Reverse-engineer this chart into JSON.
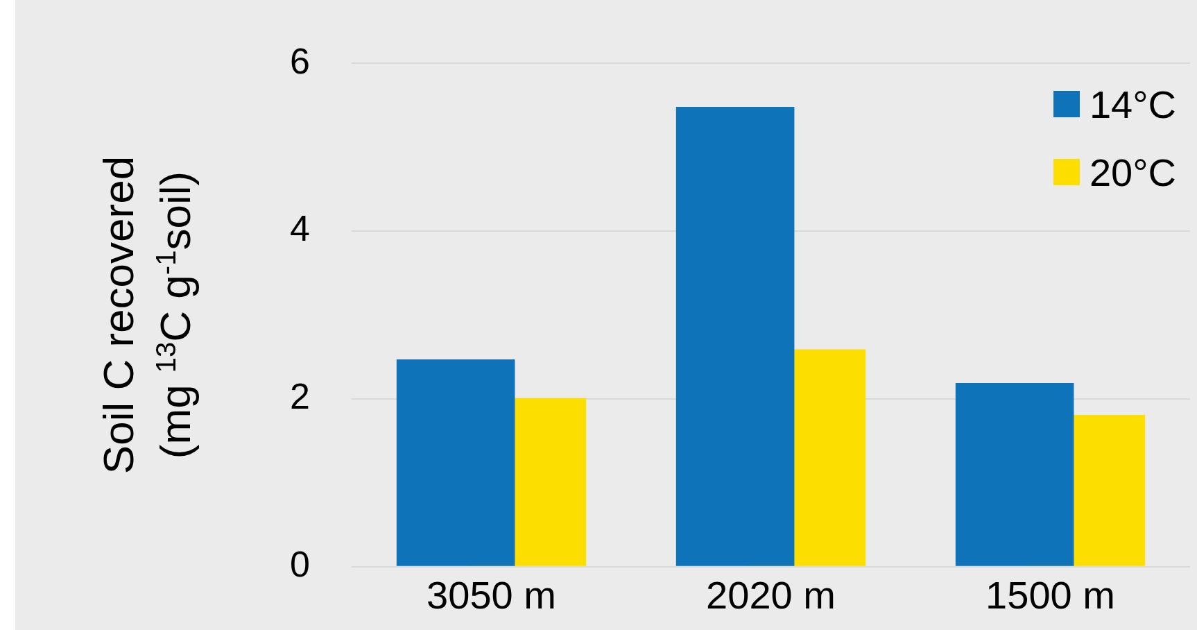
{
  "chart_data": {
    "type": "bar",
    "ylabel": "Soil C recovered\n(mg $^{13}$C g$^{-1}$soil)",
    "categories": [
      "3050 m",
      "2020 m",
      "1500 m"
    ],
    "series": [
      {
        "name": "14°C",
        "color": "#0f73b9",
        "values": [
          2.47,
          5.48,
          2.19
        ]
      },
      {
        "name": "20°C",
        "color": "#fcdf00",
        "values": [
          2.01,
          2.59,
          1.81
        ]
      }
    ],
    "ylim": [
      0,
      6
    ],
    "yticks": [
      0,
      2,
      4,
      6
    ],
    "grid": "y",
    "legend": "top right"
  }
}
